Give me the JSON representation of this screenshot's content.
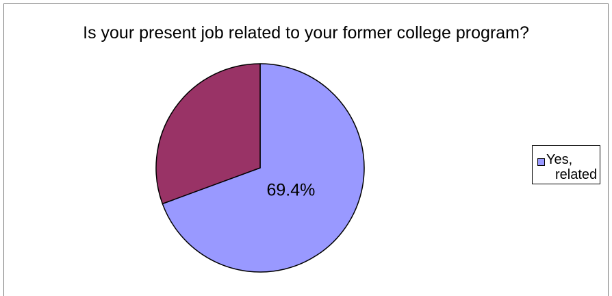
{
  "chart_data": {
    "type": "pie",
    "title": "Is your present job related to your former college program?",
    "slices": [
      {
        "name": "Yes, related",
        "value": 69.4,
        "color": "#9999ff",
        "label": "69.4%"
      },
      {
        "value": 30.6,
        "color": "#993366"
      }
    ],
    "legend": {
      "position": "right",
      "entries": [
        {
          "line1": "Yes,",
          "line2": "related",
          "color": "#9999ff"
        }
      ]
    }
  }
}
